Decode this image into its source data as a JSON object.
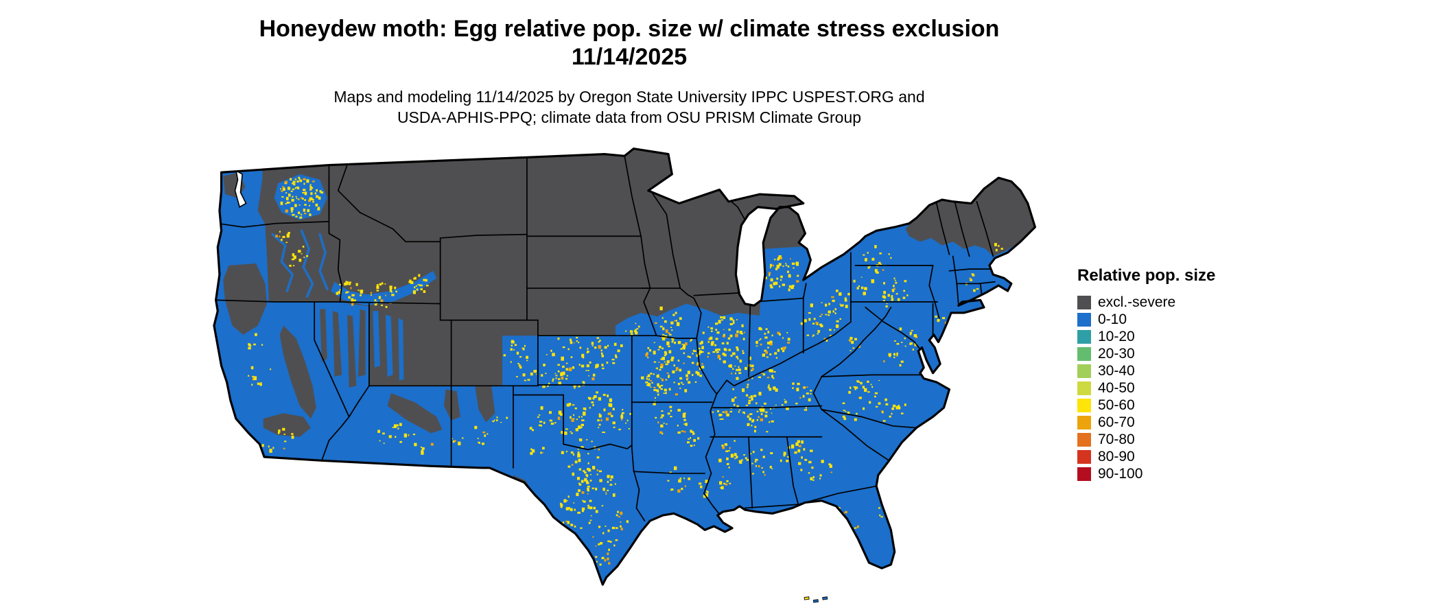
{
  "title": {
    "line1": "Honeydew moth: Egg relative pop. size w/ climate stress exclusion",
    "line2": "11/14/2025"
  },
  "subtitle": {
    "line1": "Maps and modeling 11/14/2025 by Oregon State University IPPC USPEST.ORG and",
    "line2": "USDA-APHIS-PPQ; climate data from OSU PRISM Climate Group"
  },
  "legend": {
    "title": "Relative pop. size",
    "items": [
      {
        "label": "excl.-severe",
        "color": "#4f4f51"
      },
      {
        "label": "0-10",
        "color": "#1c6fca"
      },
      {
        "label": "10-20",
        "color": "#2e9fa6"
      },
      {
        "label": "20-30",
        "color": "#64bd6f"
      },
      {
        "label": "30-40",
        "color": "#a2cf59"
      },
      {
        "label": "40-50",
        "color": "#cdda40"
      },
      {
        "label": "50-60",
        "color": "#ffe40a"
      },
      {
        "label": "60-70",
        "color": "#eda40c"
      },
      {
        "label": "70-80",
        "color": "#e3711d"
      },
      {
        "label": "80-90",
        "color": "#d5341e"
      },
      {
        "label": "90-100",
        "color": "#b50d20"
      }
    ]
  },
  "page": {
    "background": "#ffffff",
    "map_border_color": "#000000"
  }
}
